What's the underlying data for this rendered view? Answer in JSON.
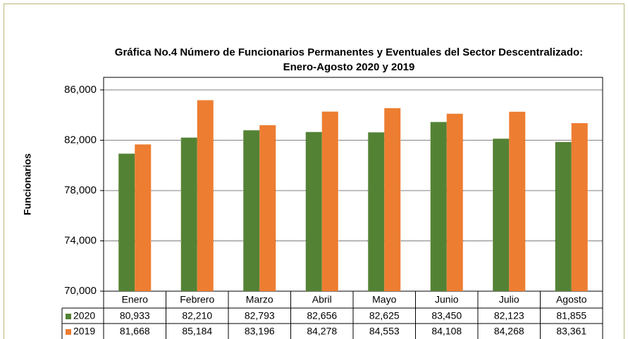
{
  "chart_data": {
    "type": "bar",
    "title": "Gráfica No.4  Número de Funcionarios Permanentes y Eventuales del Sector Descentralizado: Enero-Agosto 2020 y 2019",
    "y_label": "Funcionarios",
    "categories": [
      "Enero",
      "Febrero",
      "Marzo",
      "Abril",
      "Mayo",
      "Junio",
      "Julio",
      "Agosto"
    ],
    "series": [
      {
        "name": "2020",
        "color": "#548235",
        "values": [
          80933,
          82210,
          82793,
          82656,
          82625,
          83450,
          82123,
          81855
        ],
        "value_labels": [
          "80,933",
          "82,210",
          "82,793",
          "82,656",
          "82,625",
          "83,450",
          "82,123",
          "81,855"
        ]
      },
      {
        "name": "2019",
        "color": "#ed7d31",
        "values": [
          81668,
          85184,
          83196,
          84278,
          84553,
          84108,
          84268,
          83361
        ],
        "value_labels": [
          "81,668",
          "85,184",
          "83,196",
          "84,278",
          "84,553",
          "84,108",
          "84,268",
          "83,361"
        ]
      }
    ],
    "ylim": [
      70000,
      87000
    ],
    "yticks": [
      {
        "value": 70000,
        "label": "70,000"
      },
      {
        "value": 74000,
        "label": "74,000"
      },
      {
        "value": 78000,
        "label": "78,000"
      },
      {
        "value": 82000,
        "label": "82,000"
      },
      {
        "value": 86000,
        "label": "86,000"
      }
    ],
    "grid": true
  }
}
